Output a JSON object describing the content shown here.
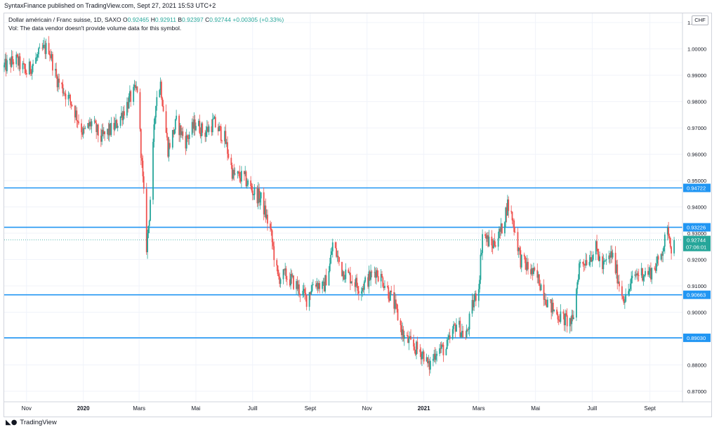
{
  "header": {
    "published_text": "SyntaxFinance published on TradingView.com, Sept 27, 2021 15:53 UTC+2"
  },
  "legend": {
    "symbol": "Dollar américain / Franc suisse, 1D, SAXO",
    "o_label": "O",
    "o_value": "0.92465",
    "h_label": "H",
    "h_value": "0.92911",
    "b_label": "B",
    "b_value": "0.92397",
    "c_label": "C",
    "c_value": "0.92744",
    "change": "+0.00305 (+0.33%)",
    "vol_text": "Vol: The data vendor doesn't provide volume data for this symbol."
  },
  "currency_label": "CHF",
  "footer": {
    "brand": "TradingView",
    "logo_icon": "tradingview-logo-icon"
  },
  "colors": {
    "up": "#26a69a",
    "down": "#ef5350",
    "level_line": "#2196f3",
    "grid": "#f0f3fa",
    "price_label": "#26a69a"
  },
  "chart_data": {
    "type": "candlestick",
    "title": "Dollar américain / Franc suisse, 1D, SAXO",
    "ylim": [
      0.866,
      1.0135
    ],
    "y_ticks": [
      "1.01000",
      "1.00000",
      "0.99000",
      "0.98000",
      "0.97000",
      "0.96000",
      "0.95000",
      "0.94000",
      "0.93000",
      "0.92000",
      "0.91000",
      "0.90000",
      "0.89000",
      "0.88000",
      "0.87000"
    ],
    "x_ticks": [
      "Nov",
      "2020",
      "Mars",
      "Mai",
      "Juill",
      "Sept",
      "Nov",
      "2021",
      "Mars",
      "Mai",
      "Juill",
      "Sept"
    ],
    "x_range": [
      "2019-10-08",
      "2021-10-06"
    ],
    "x_tick_dates": [
      "2019-11-01",
      "2020-01-01",
      "2020-03-01",
      "2020-05-01",
      "2020-07-01",
      "2020-09-01",
      "2020-11-01",
      "2021-01-01",
      "2021-03-01",
      "2021-05-01",
      "2021-07-01",
      "2021-09-01"
    ],
    "horizontal_levels": [
      {
        "value": 0.94722,
        "label": "0.94722"
      },
      {
        "value": 0.93226,
        "label": "0.93226"
      },
      {
        "value": 0.90663,
        "label": "0.90663"
      },
      {
        "value": 0.8903,
        "label": "0.89030"
      }
    ],
    "last_price": {
      "value": 0.92744,
      "label": "0.92744",
      "countdown": "07:06:01"
    },
    "price_path": [
      [
        "2019-10-08",
        0.993
      ],
      [
        "2019-10-20",
        0.996
      ],
      [
        "2019-11-01",
        0.991
      ],
      [
        "2019-11-18",
        0.9995
      ],
      [
        "2019-11-25",
        1.0005
      ],
      [
        "2019-12-03",
        0.989
      ],
      [
        "2019-12-20",
        0.979
      ],
      [
        "2020-01-01",
        0.968
      ],
      [
        "2020-01-10",
        0.972
      ],
      [
        "2020-01-20",
        0.966
      ],
      [
        "2020-02-05",
        0.971
      ],
      [
        "2020-02-20",
        0.981
      ],
      [
        "2020-02-28",
        0.985
      ],
      [
        "2020-03-06",
        0.944
      ],
      [
        "2020-03-09",
        0.925
      ],
      [
        "2020-03-12",
        0.937
      ],
      [
        "2020-03-19",
        0.981
      ],
      [
        "2020-03-24",
        0.987
      ],
      [
        "2020-04-01",
        0.962
      ],
      [
        "2020-04-10",
        0.972
      ],
      [
        "2020-04-20",
        0.965
      ],
      [
        "2020-05-01",
        0.972
      ],
      [
        "2020-05-10",
        0.968
      ],
      [
        "2020-05-20",
        0.972
      ],
      [
        "2020-06-01",
        0.966
      ],
      [
        "2020-06-10",
        0.952
      ],
      [
        "2020-06-22",
        0.951
      ],
      [
        "2020-07-01",
        0.946
      ],
      [
        "2020-07-10",
        0.943
      ],
      [
        "2020-07-20",
        0.931
      ],
      [
        "2020-07-28",
        0.913
      ],
      [
        "2020-08-05",
        0.914
      ],
      [
        "2020-08-15",
        0.911
      ],
      [
        "2020-08-28",
        0.905
      ],
      [
        "2020-09-05",
        0.912
      ],
      [
        "2020-09-15",
        0.909
      ],
      [
        "2020-09-22",
        0.918
      ],
      [
        "2020-09-25",
        0.926
      ],
      [
        "2020-10-05",
        0.916
      ],
      [
        "2020-10-15",
        0.913
      ],
      [
        "2020-10-25",
        0.909
      ],
      [
        "2020-11-01",
        0.912
      ],
      [
        "2020-11-10",
        0.916
      ],
      [
        "2020-11-20",
        0.911
      ],
      [
        "2020-12-01",
        0.902
      ],
      [
        "2020-12-10",
        0.891
      ],
      [
        "2020-12-20",
        0.887
      ],
      [
        "2021-01-01",
        0.884
      ],
      [
        "2021-01-06",
        0.879
      ],
      [
        "2021-01-15",
        0.886
      ],
      [
        "2021-01-25",
        0.886
      ],
      [
        "2021-02-05",
        0.896
      ],
      [
        "2021-02-15",
        0.89
      ],
      [
        "2021-02-22",
        0.902
      ],
      [
        "2021-03-01",
        0.91
      ],
      [
        "2021-03-05",
        0.93
      ],
      [
        "2021-03-15",
        0.925
      ],
      [
        "2021-03-25",
        0.931
      ],
      [
        "2021-04-01",
        0.941
      ],
      [
        "2021-04-06",
        0.936
      ],
      [
        "2021-04-15",
        0.92
      ],
      [
        "2021-04-25",
        0.916
      ],
      [
        "2021-05-05",
        0.912
      ],
      [
        "2021-05-15",
        0.903
      ],
      [
        "2021-05-25",
        0.899
      ],
      [
        "2021-06-02",
        0.897
      ],
      [
        "2021-06-10",
        0.896
      ],
      [
        "2021-06-17",
        0.918
      ],
      [
        "2021-06-28",
        0.921
      ],
      [
        "2021-07-05",
        0.924
      ],
      [
        "2021-07-12",
        0.917
      ],
      [
        "2021-07-22",
        0.922
      ],
      [
        "2021-08-02",
        0.907
      ],
      [
        "2021-08-06",
        0.905
      ],
      [
        "2021-08-15",
        0.914
      ],
      [
        "2021-08-22",
        0.915
      ],
      [
        "2021-09-01",
        0.915
      ],
      [
        "2021-09-10",
        0.919
      ],
      [
        "2021-09-16",
        0.926
      ],
      [
        "2021-09-21",
        0.931
      ],
      [
        "2021-09-24",
        0.925
      ],
      [
        "2021-09-27",
        0.9274
      ]
    ]
  }
}
